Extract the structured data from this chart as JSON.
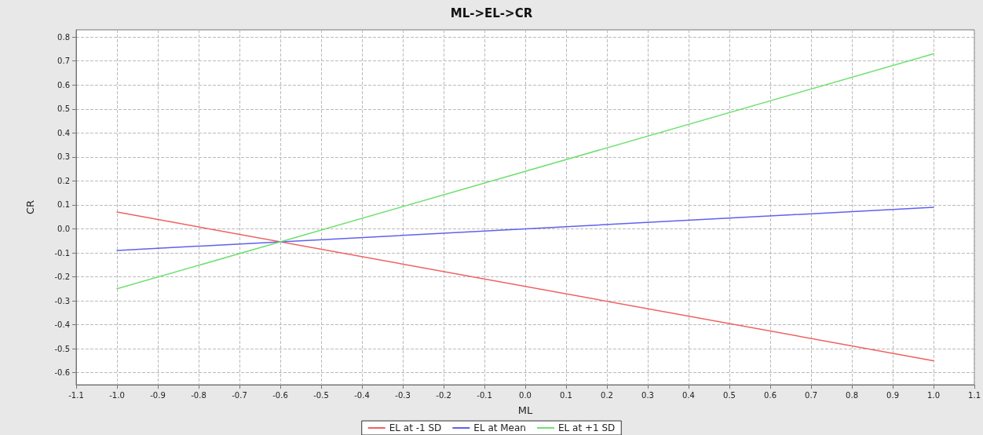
{
  "chart_data": {
    "type": "line",
    "title": "ML->EL->CR",
    "xlabel": "ML",
    "ylabel": "CR",
    "xlim": [
      -1.1,
      1.1
    ],
    "xticks": [
      -1.1,
      {
        "value": -1,
        "label": "-1.0"
      },
      -0.9,
      -0.8,
      -0.7,
      -0.6,
      -0.5,
      -0.4,
      -0.3,
      -0.2,
      -0.1,
      {
        "value": 0,
        "label": "0.0"
      },
      0.1,
      0.2,
      0.3,
      0.4,
      0.5,
      0.6,
      0.7,
      0.8,
      0.9,
      {
        "value": 1,
        "label": "1.0"
      },
      1.1
    ],
    "ylim": [
      -0.65,
      0.83
    ],
    "yticks": [
      -0.6,
      -0.5,
      -0.4,
      -0.3,
      -0.2,
      -0.1,
      {
        "value": 0,
        "label": "0.0"
      },
      0.1,
      0.2,
      0.3,
      0.4,
      0.5,
      0.6,
      0.7,
      0.8
    ],
    "x": [
      -1,
      1
    ],
    "series": [
      {
        "name": "EL at -1 SD",
        "color": "#f06060",
        "values": [
          0.07,
          -0.55
        ]
      },
      {
        "name": "EL at Mean",
        "color": "#6060f0",
        "values": [
          -0.09,
          0.09
        ]
      },
      {
        "name": "EL at +1 SD",
        "color": "#70e070",
        "values": [
          -0.25,
          0.73
        ]
      }
    ],
    "grid": true,
    "legend": "bottom",
    "marker": "none",
    "line_style": "solid"
  }
}
